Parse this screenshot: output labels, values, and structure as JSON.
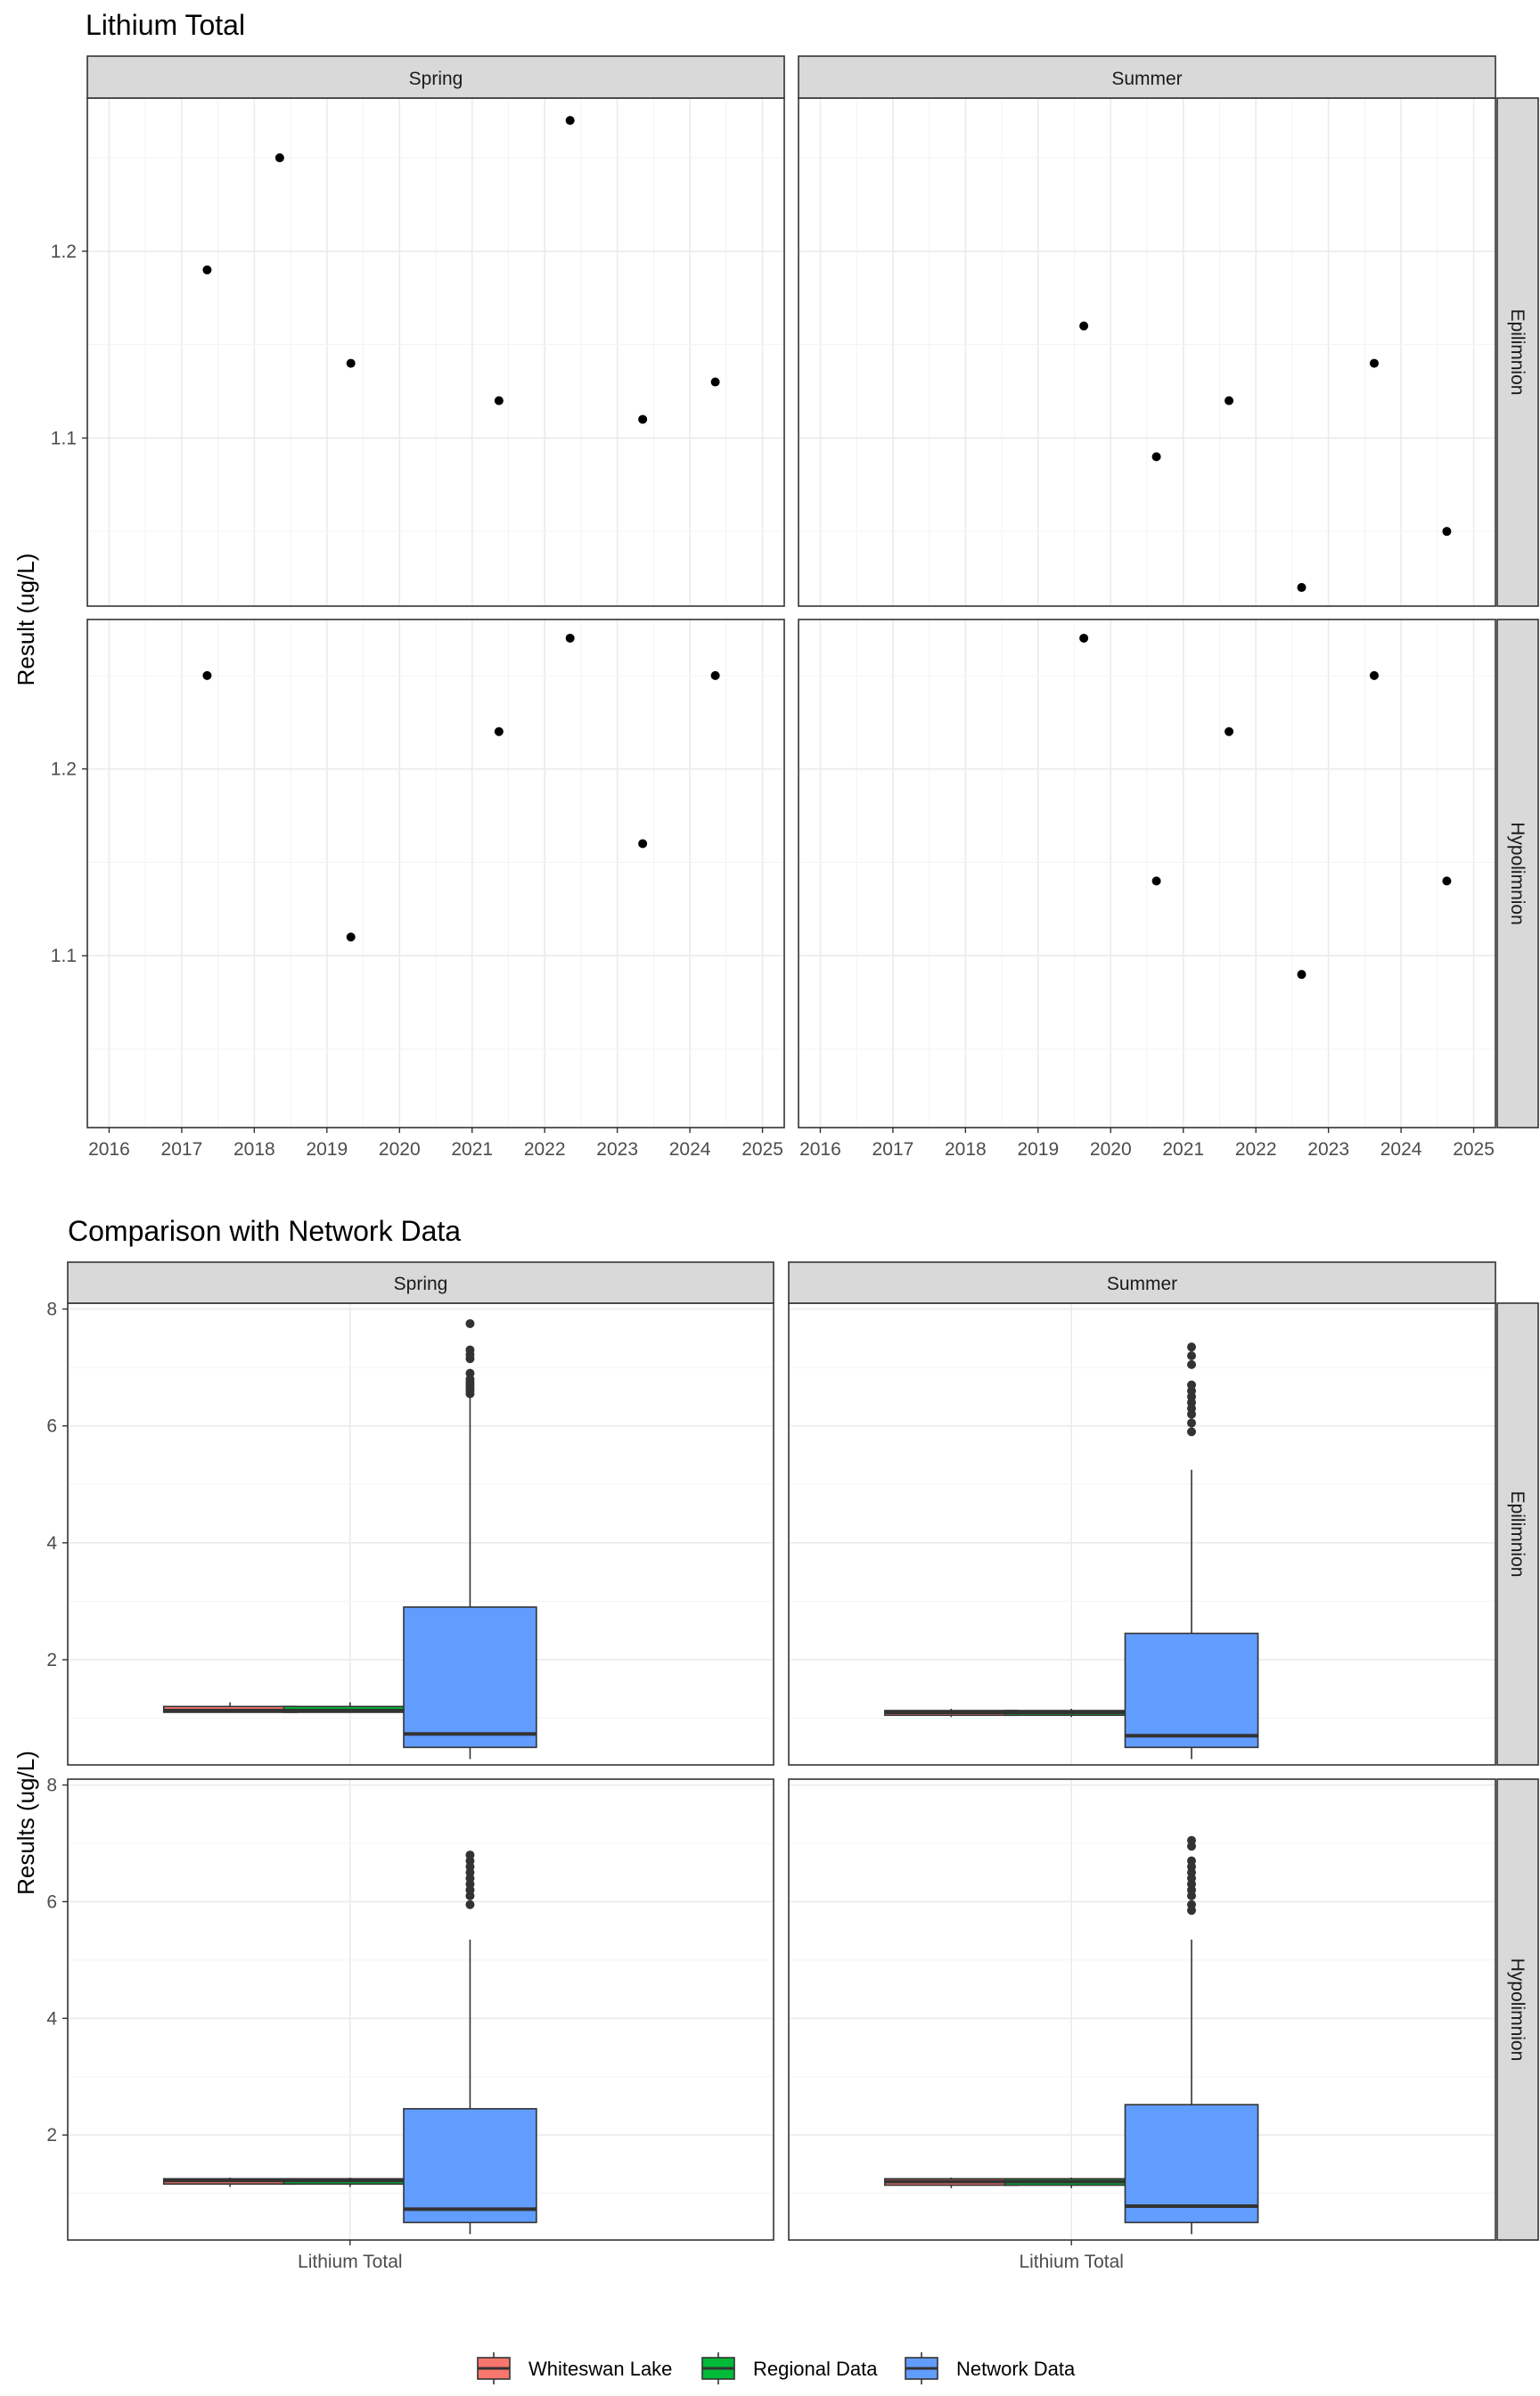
{
  "chart_data": [
    {
      "type": "scatter",
      "title": "Lithium Total",
      "ylabel": "Result (ug/L)",
      "xlabel": "",
      "x_ticks": [
        "2016",
        "2017",
        "2018",
        "2019",
        "2020",
        "2021",
        "2022",
        "2023",
        "2024",
        "2025"
      ],
      "x_range": [
        2015.7,
        2025.3
      ],
      "y_ticks": [
        "1.1",
        "1.2"
      ],
      "grid": true,
      "col_facets": [
        "Spring",
        "Summer"
      ],
      "row_facets": [
        "Epilimnion",
        "Hypolimnion"
      ],
      "panels": [
        {
          "season": "Spring",
          "layer": "Epilimnion",
          "ylim": [
            1.01,
            1.282
          ],
          "points": [
            {
              "x": 2017.35,
              "y": 1.19
            },
            {
              "x": 2018.35,
              "y": 1.25
            },
            {
              "x": 2019.33,
              "y": 1.14
            },
            {
              "x": 2021.37,
              "y": 1.12
            },
            {
              "x": 2022.35,
              "y": 1.27
            },
            {
              "x": 2023.35,
              "y": 1.11
            },
            {
              "x": 2024.35,
              "y": 1.13
            }
          ]
        },
        {
          "season": "Summer",
          "layer": "Epilimnion",
          "ylim": [
            1.01,
            1.282
          ],
          "points": [
            {
              "x": 2019.63,
              "y": 1.16
            },
            {
              "x": 2020.63,
              "y": 1.09
            },
            {
              "x": 2021.63,
              "y": 1.12
            },
            {
              "x": 2022.63,
              "y": 1.02
            },
            {
              "x": 2023.63,
              "y": 1.14
            },
            {
              "x": 2024.63,
              "y": 1.05
            }
          ]
        },
        {
          "season": "Spring",
          "layer": "Hypolimnion",
          "ylim": [
            1.008,
            1.28
          ],
          "points": [
            {
              "x": 2017.35,
              "y": 1.25
            },
            {
              "x": 2019.33,
              "y": 1.11
            },
            {
              "x": 2021.37,
              "y": 1.22
            },
            {
              "x": 2022.35,
              "y": 1.27
            },
            {
              "x": 2023.35,
              "y": 1.16
            },
            {
              "x": 2024.35,
              "y": 1.25
            }
          ]
        },
        {
          "season": "Summer",
          "layer": "Hypolimnion",
          "ylim": [
            1.008,
            1.28
          ],
          "points": [
            {
              "x": 2019.63,
              "y": 1.27
            },
            {
              "x": 2020.63,
              "y": 1.14
            },
            {
              "x": 2021.63,
              "y": 1.22
            },
            {
              "x": 2022.63,
              "y": 1.09
            },
            {
              "x": 2023.63,
              "y": 1.25
            },
            {
              "x": 2024.63,
              "y": 1.14
            }
          ]
        }
      ]
    },
    {
      "type": "box",
      "title": "Comparison with Network Data",
      "ylabel": "Results (ug/L)",
      "xlabel": "",
      "x_tick_label": "Lithium Total",
      "y_ticks": [
        "2",
        "4",
        "6",
        "8"
      ],
      "ylim": [
        0.2,
        8.1
      ],
      "grid": true,
      "col_facets": [
        "Spring",
        "Summer"
      ],
      "row_facets": [
        "Epilimnion",
        "Hypolimnion"
      ],
      "legend": {
        "position": "bottom",
        "entries": [
          {
            "name": "Whiteswan Lake",
            "color": "#F8766D"
          },
          {
            "name": "Regional Data",
            "color": "#00BA38"
          },
          {
            "name": "Network Data",
            "color": "#619CFF"
          }
        ]
      },
      "panels": [
        {
          "season": "Spring",
          "layer": "Epilimnion",
          "boxes": [
            {
              "group": "Whiteswan Lake",
              "min": 1.1,
              "q1": 1.1,
              "median": 1.13,
              "q3": 1.2,
              "max": 1.27
            },
            {
              "group": "Regional Data",
              "min": 1.1,
              "q1": 1.1,
              "median": 1.13,
              "q3": 1.2,
              "max": 1.27
            },
            {
              "group": "Network Data",
              "min": 0.3,
              "q1": 0.5,
              "median": 0.73,
              "q3": 2.9,
              "max": 6.5,
              "outliers": [
                6.55,
                6.6,
                6.65,
                6.7,
                6.75,
                6.8,
                6.9,
                7.15,
                7.22,
                7.3,
                7.75
              ]
            }
          ]
        },
        {
          "season": "Summer",
          "layer": "Epilimnion",
          "boxes": [
            {
              "group": "Whiteswan Lake",
              "min": 1.02,
              "q1": 1.05,
              "median": 1.1,
              "q3": 1.13,
              "max": 1.16
            },
            {
              "group": "Regional Data",
              "min": 1.02,
              "q1": 1.05,
              "median": 1.1,
              "q3": 1.13,
              "max": 1.16
            },
            {
              "group": "Network Data",
              "min": 0.3,
              "q1": 0.5,
              "median": 0.7,
              "q3": 2.45,
              "max": 5.25,
              "outliers": [
                5.9,
                6.05,
                6.2,
                6.3,
                6.4,
                6.5,
                6.6,
                6.7,
                7.05,
                7.2,
                7.35
              ]
            }
          ]
        },
        {
          "season": "Spring",
          "layer": "Hypolimnion",
          "boxes": [
            {
              "group": "Whiteswan Lake",
              "min": 1.11,
              "q1": 1.16,
              "median": 1.22,
              "q3": 1.25,
              "max": 1.27
            },
            {
              "group": "Regional Data",
              "min": 1.11,
              "q1": 1.16,
              "median": 1.22,
              "q3": 1.25,
              "max": 1.27
            },
            {
              "group": "Network Data",
              "min": 0.3,
              "q1": 0.5,
              "median": 0.73,
              "q3": 2.45,
              "max": 5.35,
              "outliers": [
                5.95,
                6.1,
                6.2,
                6.3,
                6.4,
                6.5,
                6.6,
                6.7,
                6.8
              ]
            }
          ]
        },
        {
          "season": "Summer",
          "layer": "Hypolimnion",
          "boxes": [
            {
              "group": "Whiteswan Lake",
              "min": 1.09,
              "q1": 1.14,
              "median": 1.2,
              "q3": 1.25,
              "max": 1.27
            },
            {
              "group": "Regional Data",
              "min": 1.09,
              "q1": 1.14,
              "median": 1.2,
              "q3": 1.25,
              "max": 1.27
            },
            {
              "group": "Network Data",
              "min": 0.3,
              "q1": 0.5,
              "median": 0.78,
              "q3": 2.52,
              "max": 5.35,
              "outliers": [
                5.85,
                5.95,
                6.1,
                6.2,
                6.3,
                6.4,
                6.5,
                6.6,
                6.7,
                6.95,
                7.05
              ]
            }
          ]
        }
      ]
    }
  ]
}
